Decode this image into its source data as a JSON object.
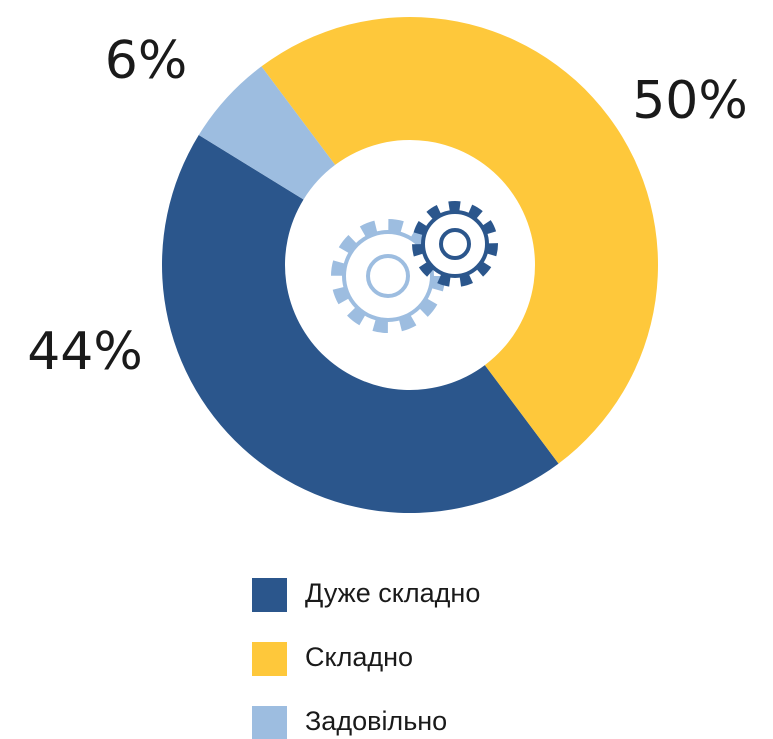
{
  "chart_data": {
    "type": "donut",
    "categories": [
      "Дуже складно",
      "Складно",
      "Задовільно"
    ],
    "values": [
      44,
      50,
      6
    ],
    "value_labels": [
      "44%",
      "50%",
      "6%"
    ],
    "colors": [
      "#2b568c",
      "#fec83b",
      "#9dbde0"
    ],
    "legend": "bottom"
  }
}
